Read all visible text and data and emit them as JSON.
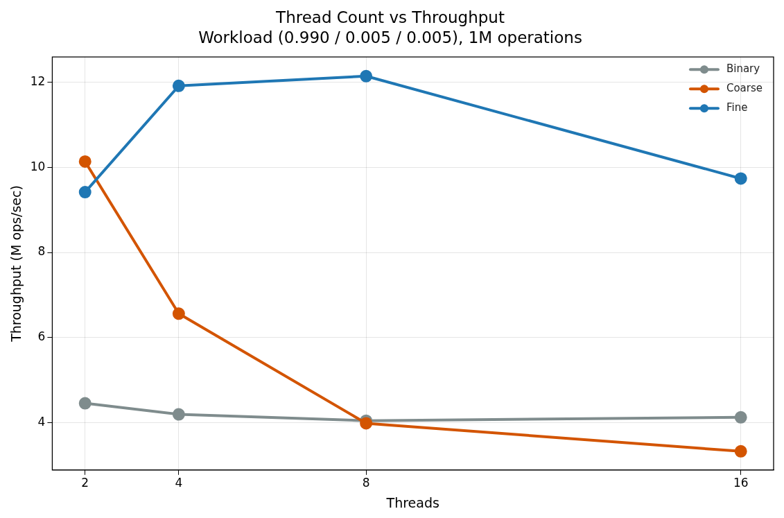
{
  "chart_data": {
    "type": "line",
    "title": "Thread Count vs Throughput",
    "subtitle": "Workload (0.990 / 0.005 / 0.005), 1M operations",
    "xlabel": "Threads",
    "ylabel": "Throughput (M ops/sec)",
    "x": [
      2,
      4,
      8,
      16
    ],
    "series": [
      {
        "name": "Binary",
        "color": "#7f8c8d",
        "values": [
          4.45,
          4.19,
          4.04,
          4.12
        ]
      },
      {
        "name": "Coarse",
        "color": "#d35400",
        "values": [
          10.14,
          6.56,
          3.98,
          3.32
        ]
      },
      {
        "name": "Fine",
        "color": "#1f77b4",
        "values": [
          9.42,
          11.92,
          12.15,
          9.74
        ]
      }
    ],
    "xlim": [
      1.3,
      16.7
    ],
    "ylim": [
      2.88,
      12.6
    ],
    "xticks": [
      2,
      4,
      8,
      16
    ],
    "yticks": [
      4,
      6,
      8,
      10,
      12
    ],
    "grid": true,
    "legend": "top right",
    "marker": "circle"
  }
}
